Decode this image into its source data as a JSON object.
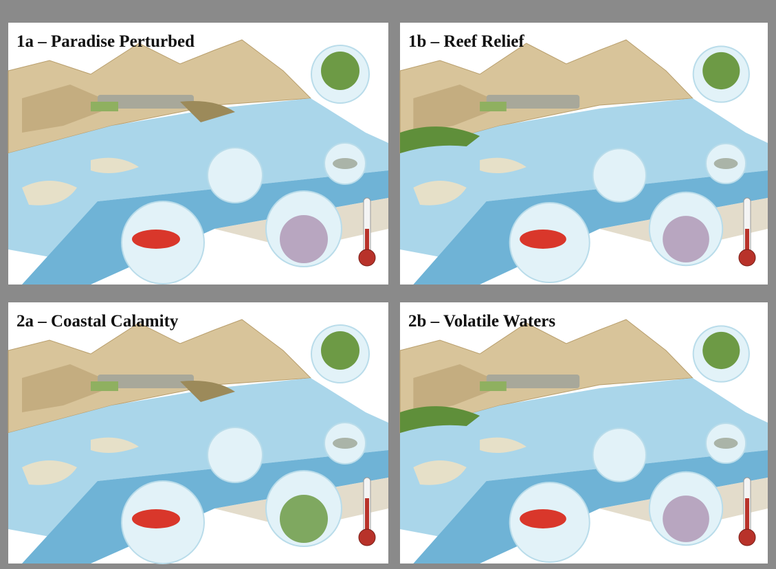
{
  "panels": [
    {
      "title": "1a – Paradise Perturbed"
    },
    {
      "title": "1b – Reef Relief"
    },
    {
      "title": "2a – Coastal Calamity"
    },
    {
      "title": "2b – Volatile Waters"
    }
  ]
}
